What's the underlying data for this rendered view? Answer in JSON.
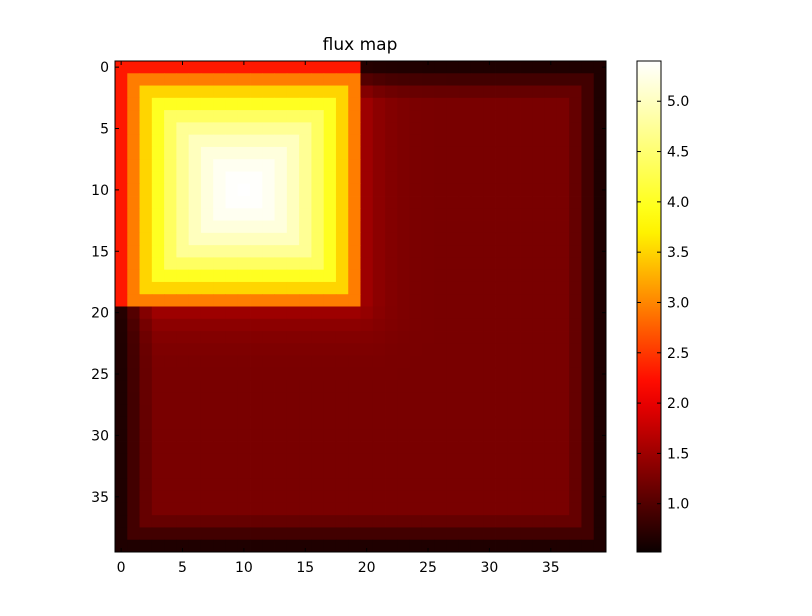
{
  "chart_data": {
    "type": "heatmap",
    "title": "flux map",
    "xlabel": "",
    "ylabel": "",
    "grid": false,
    "colormap": "hot",
    "colormap_stops": [
      "#0b0000",
      "#ff0000",
      "#ffff00",
      "#ffffff"
    ],
    "shape": [
      40,
      40
    ],
    "xlim": [
      -0.5,
      39.5
    ],
    "ylim": [
      39.5,
      -0.5
    ],
    "y_axis_inverted": true,
    "value_range": [
      0.52,
      5.4
    ],
    "x_ticks": [
      0,
      5,
      10,
      15,
      20,
      25,
      30,
      35
    ],
    "y_ticks": [
      0,
      5,
      10,
      15,
      20,
      25,
      30,
      35
    ],
    "colorbar_ticks": [
      1.0,
      1.5,
      2.0,
      2.5,
      3.0,
      3.5,
      4.0,
      4.5,
      5.0
    ],
    "colorbar_tick_labels": [
      "1.0",
      "1.5",
      "2.0",
      "2.5",
      "3.0",
      "3.5",
      "4.0",
      "4.5",
      "5.0"
    ],
    "field_description": {
      "hot_block": {
        "rows": [
          0,
          19
        ],
        "cols": [
          0,
          19
        ],
        "peak_value": 5.4,
        "peak_at": [
          10,
          10
        ],
        "edge_value": 2.3
      },
      "background_value": 1.25,
      "boundary_value": 0.55
    }
  }
}
